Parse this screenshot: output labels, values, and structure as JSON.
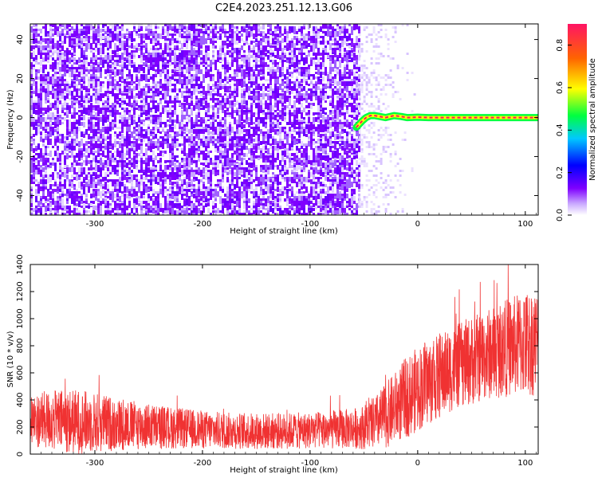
{
  "figure_title": "C2E4.2023.251.12.13.G06",
  "colors": {
    "noise": "#7f00ff",
    "line": "#f03232",
    "colormap": [
      "#ffffff",
      "#7f00ff",
      "#0000ff",
      "#00c8ff",
      "#00ff40",
      "#ffff00",
      "#ff6400",
      "#ff1464"
    ]
  },
  "chart_data": [
    {
      "type": "heatmap",
      "title": "",
      "xlabel": "Height of straight line (km)",
      "ylabel": "Frequency (Hz)",
      "xlim": [
        -360,
        112
      ],
      "ylim": [
        -50,
        48
      ],
      "xticks": [
        -300,
        -200,
        -100,
        0,
        100
      ],
      "yticks": [
        -40,
        -20,
        0,
        20,
        40
      ],
      "grid": false,
      "noise_region_end_km": -55,
      "ridge": {
        "x": [
          -57,
          -52,
          -48,
          -44,
          -40,
          -30,
          -22,
          -15,
          -10,
          0,
          10,
          20,
          40,
          60,
          80,
          100,
          112
        ],
        "y": [
          -5,
          -2,
          0,
          1,
          1,
          0,
          1,
          0.5,
          0,
          0.2,
          0,
          0,
          0,
          0,
          0,
          0,
          0
        ]
      },
      "colorbar": {
        "label": "Normalized spectral amplitude",
        "range": [
          0,
          0.9
        ],
        "ticks": [
          0.0,
          0.2,
          0.4,
          0.6,
          0.8
        ]
      }
    },
    {
      "type": "line",
      "title": "",
      "xlabel": "Height of straight line (km)",
      "ylabel": "SNR (10 * v/v)",
      "xlim": [
        -360,
        112
      ],
      "ylim": [
        0,
        1400
      ],
      "xticks": [
        -300,
        -200,
        -100,
        0,
        100
      ],
      "yticks": [
        0,
        200,
        400,
        600,
        800,
        1000,
        1200,
        1400
      ],
      "grid": false,
      "series": [
        {
          "envelope": {
            "x": [
              -360,
              -340,
              -320,
              -300,
              -280,
              -260,
              -240,
              -220,
              -200,
              -180,
              -160,
              -140,
              -120,
              -100,
              -80,
              -60,
              -50,
              -40,
              -30,
              -20,
              -10,
              0,
              10,
              20,
              30,
              40,
              50,
              60,
              70,
              80,
              90,
              100,
              112
            ],
            "mean": [
              250,
              250,
              240,
              235,
              220,
              210,
              200,
              190,
              180,
              175,
              170,
              170,
              170,
              175,
              180,
              190,
              200,
              230,
              280,
              350,
              420,
              480,
              530,
              570,
              620,
              660,
              690,
              720,
              750,
              780,
              800,
              820,
              830
            ],
            "spread": [
              130,
              150,
              160,
              150,
              130,
              120,
              110,
              100,
              95,
              90,
              90,
              90,
              90,
              90,
              95,
              100,
              110,
              130,
              160,
              180,
              200,
              210,
              210,
              210,
              210,
              210,
              220,
              220,
              230,
              240,
              250,
              270,
              260
            ]
          }
        }
      ]
    }
  ]
}
